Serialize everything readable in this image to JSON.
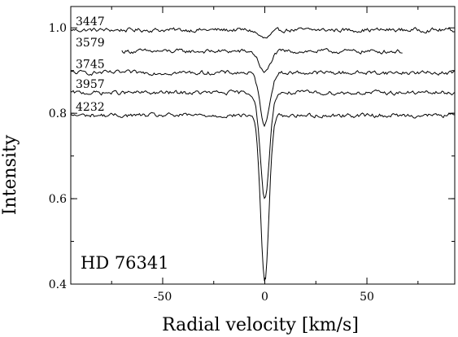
{
  "chart_data": {
    "type": "line",
    "xlabel": "Radial velocity [km/s]",
    "ylabel": "Intensity",
    "annotation": "HD 76341",
    "xlim": [
      -95,
      93
    ],
    "ylim": [
      0.4,
      1.05
    ],
    "x_ticks": [
      -50,
      0,
      50
    ],
    "y_ticks": [
      0.4,
      0.6,
      0.8,
      1.0
    ],
    "x_tick_labels": [
      "-50",
      "0",
      "50"
    ],
    "y_tick_labels": [
      "0.4",
      "0.6",
      "0.8",
      "1.0"
    ],
    "grid": false,
    "series": [
      {
        "name": "3447",
        "continuum": 0.995,
        "depth": 0.02,
        "width": 3.0,
        "xmin": -95,
        "xmax": 93,
        "noise": 0.004
      },
      {
        "name": "3579",
        "continuum": 0.945,
        "depth": 0.05,
        "width": 2.6,
        "xmin": -70,
        "xmax": 68,
        "noise": 0.004
      },
      {
        "name": "3745",
        "continuum": 0.895,
        "depth": 0.12,
        "width": 2.4,
        "xmin": -95,
        "xmax": 93,
        "noise": 0.004
      },
      {
        "name": "3957",
        "continuum": 0.848,
        "depth": 0.25,
        "width": 2.2,
        "xmin": -95,
        "xmax": 93,
        "noise": 0.004
      },
      {
        "name": "4232",
        "continuum": 0.795,
        "depth": 0.39,
        "width": 2.0,
        "xmin": -95,
        "xmax": 93,
        "noise": 0.004
      }
    ]
  }
}
